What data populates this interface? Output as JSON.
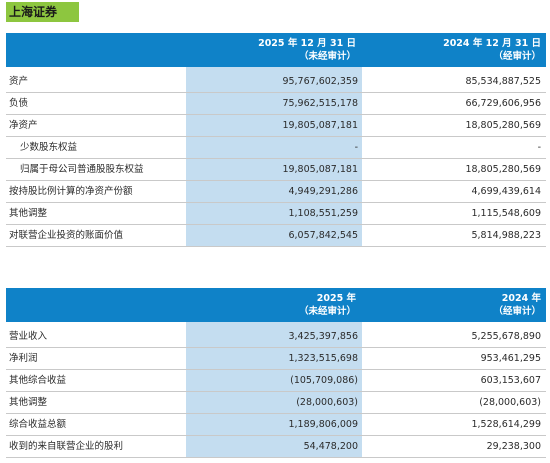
{
  "tag": "上海证券",
  "table1": {
    "col1": {
      "date": "2025 年 12 月 31 日",
      "note": "（未经审计）"
    },
    "col2": {
      "date": "2024 年 12 月 31 日",
      "note": "（经审计）"
    },
    "rows": [
      {
        "label": "资产",
        "v1": "95,767,602,359",
        "v2": "85,534,887,525"
      },
      {
        "label": "负债",
        "v1": "75,962,515,178",
        "v2": "66,729,606,956"
      },
      {
        "label": "净资产",
        "v1": "19,805,087,181",
        "v2": "18,805,280,569"
      },
      {
        "label": "少数股东权益",
        "v1": "-",
        "v2": "-"
      },
      {
        "label": "归属于母公司普通股股东权益",
        "v1": "19,805,087,181",
        "v2": "18,805,280,569"
      },
      {
        "label": "按持股比例计算的净资产份额",
        "v1": "4,949,291,286",
        "v2": "4,699,439,614"
      },
      {
        "label": "其他调整",
        "v1": "1,108,551,259",
        "v2": "1,115,548,609"
      },
      {
        "label": "对联营企业投资的账面价值",
        "v1": "6,057,842,545",
        "v2": "5,814,988,223"
      }
    ]
  },
  "table2": {
    "col1": {
      "date": "2025 年",
      "note": "（未经审计）"
    },
    "col2": {
      "date": "2024 年",
      "note": "（经审计）"
    },
    "rows": [
      {
        "label": "营业收入",
        "v1": "3,425,397,856",
        "v2": "5,255,678,890"
      },
      {
        "label": "净利润",
        "v1": "1,323,515,698",
        "v2": "953,461,295"
      },
      {
        "label": "其他综合收益",
        "v1": "(105,709,086)",
        "v2": "603,153,607"
      },
      {
        "label": "其他调整",
        "v1": "(28,000,603)",
        "v2": "(28,000,603)"
      },
      {
        "label": "综合收益总额",
        "v1": "1,189,806,009",
        "v2": "1,528,614,299"
      },
      {
        "label": "收到的来自联营企业的股利",
        "v1": "54,478,200",
        "v2": "29,238,300"
      }
    ]
  }
}
